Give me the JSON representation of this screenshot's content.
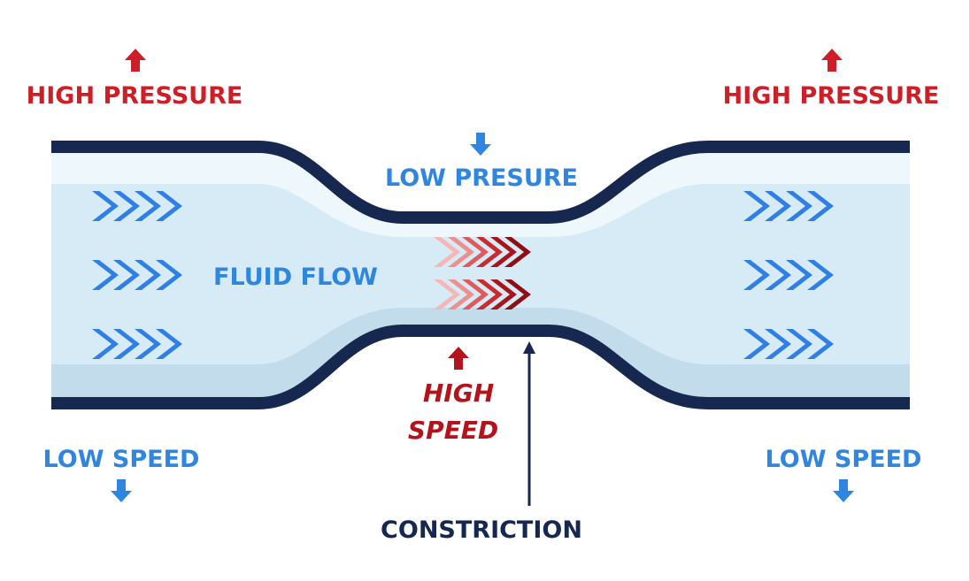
{
  "labels": {
    "high_pressure_left": "HIGH PRESSURE",
    "high_pressure_right": "HIGH PRESSURE",
    "low_pressure": "LOW PRESURE",
    "fluid_flow": "FLUID FLOW",
    "high_speed_line1": "HIGH",
    "high_speed_line2": "SPEED",
    "low_speed_left": "LOW SPEED",
    "low_speed_right": "LOW SPEED",
    "constriction": "CONSTRICTION"
  },
  "colors": {
    "pressure_red": "#cc1f27",
    "speed_red": "#b3141c",
    "blue_text": "#2f86e0",
    "navy": "#16284f",
    "arrow_blue": "#2f7fe6",
    "fluid_light": "#d7ebf6",
    "fluid_mid": "#c2dcec",
    "fluid_highlight": "#eef7fc"
  },
  "icons": {
    "pressure_up": "arrow-up-icon",
    "pressure_down": "arrow-down-icon",
    "flow": "chevron-right-icon"
  }
}
